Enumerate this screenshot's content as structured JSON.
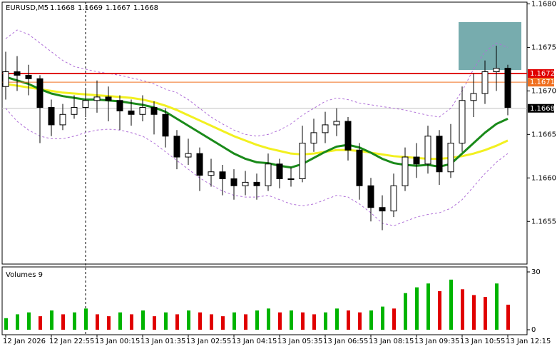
{
  "chart_data": {
    "type": "candlestick",
    "symbol": "EURUSD,M5",
    "header_ohlc": [
      1.1668,
      1.1669,
      1.1667,
      1.1668
    ],
    "categories": [
      "12 Jan 2026",
      null,
      null,
      null,
      "12 Jan 22:55",
      null,
      null,
      null,
      "13 Jan 00:15",
      null,
      null,
      null,
      "13 Jan 01:35",
      null,
      null,
      null,
      "13 Jan 02:55",
      null,
      null,
      null,
      "13 Jan 04:15",
      null,
      null,
      null,
      "13 Jan 05:35",
      null,
      null,
      null,
      "13 Jan 06:55",
      null,
      null,
      null,
      "13 Jan 08:15",
      null,
      null,
      null,
      "13 Jan 09:35",
      null,
      null,
      null,
      "13 Jan 10:55",
      null,
      null,
      null,
      "13 Jan 12:15"
    ],
    "ohlc": [
      [
        1.16705,
        1.16745,
        1.1669,
        1.16722
      ],
      [
        1.16722,
        1.1674,
        1.167,
        1.16718
      ],
      [
        1.16718,
        1.1673,
        1.16695,
        1.16714
      ],
      [
        1.16714,
        1.16718,
        1.1664,
        1.16681
      ],
      [
        1.16681,
        1.1669,
        1.16648,
        1.16661
      ],
      [
        1.16661,
        1.16685,
        1.16655,
        1.16673
      ],
      [
        1.16673,
        1.16695,
        1.16668,
        1.16681
      ],
      [
        1.16681,
        1.16702,
        1.1667,
        1.16689
      ],
      [
        1.16689,
        1.16712,
        1.16675,
        1.16693
      ],
      [
        1.16693,
        1.16705,
        1.16665,
        1.16689
      ],
      [
        1.16689,
        1.16695,
        1.16655,
        1.16677
      ],
      [
        1.16677,
        1.1669,
        1.1666,
        1.16673
      ],
      [
        1.16673,
        1.16695,
        1.16665,
        1.16681
      ],
      [
        1.16681,
        1.16688,
        1.1665,
        1.16673
      ],
      [
        1.16673,
        1.1668,
        1.16635,
        1.16648
      ],
      [
        1.16648,
        1.16655,
        1.1661,
        1.16624
      ],
      [
        1.16624,
        1.16645,
        1.16615,
        1.16628
      ],
      [
        1.16628,
        1.16635,
        1.16585,
        1.16603
      ],
      [
        1.16603,
        1.16622,
        1.1659,
        1.16607
      ],
      [
        1.16607,
        1.16615,
        1.1658,
        1.16599
      ],
      [
        1.16599,
        1.1661,
        1.16575,
        1.16591
      ],
      [
        1.16591,
        1.16608,
        1.1658,
        1.16595
      ],
      [
        1.16595,
        1.16605,
        1.16575,
        1.16591
      ],
      [
        1.16591,
        1.16628,
        1.16585,
        1.16616
      ],
      [
        1.16616,
        1.16622,
        1.16588,
        1.16599
      ],
      [
        1.16599,
        1.16612,
        1.1659,
        1.16599
      ],
      [
        1.16599,
        1.1666,
        1.16595,
        1.1664
      ],
      [
        1.1664,
        1.16668,
        1.1663,
        1.16652
      ],
      [
        1.16652,
        1.16676,
        1.1664,
        1.16661
      ],
      [
        1.16661,
        1.1668,
        1.16648,
        1.16665
      ],
      [
        1.16665,
        1.1667,
        1.1662,
        1.16632
      ],
      [
        1.16632,
        1.1664,
        1.16575,
        1.16591
      ],
      [
        1.16591,
        1.166,
        1.1655,
        1.16566
      ],
      [
        1.16566,
        1.1658,
        1.1654,
        1.16562
      ],
      [
        1.16562,
        1.16605,
        1.16555,
        1.16591
      ],
      [
        1.16591,
        1.16635,
        1.16585,
        1.16624
      ],
      [
        1.16624,
        1.1664,
        1.166,
        1.16616
      ],
      [
        1.16616,
        1.1666,
        1.16605,
        1.16648
      ],
      [
        1.16648,
        1.16655,
        1.16592,
        1.16607
      ],
      [
        1.16607,
        1.16662,
        1.166,
        1.1664
      ],
      [
        1.1664,
        1.16705,
        1.1663,
        1.16689
      ],
      [
        1.16689,
        1.1672,
        1.1667,
        1.16697
      ],
      [
        1.16697,
        1.16735,
        1.16685,
        1.16722
      ],
      [
        1.16722,
        1.16752,
        1.167,
        1.16726
      ],
      [
        1.16726,
        1.1673,
        1.16672,
        1.16681
      ]
    ],
    "lines": [
      {
        "color": "#b070d8",
        "style": "dashed",
        "values": [
          1.1676,
          1.1677,
          1.16765,
          1.16755,
          1.16745,
          1.16735,
          1.16728,
          1.16725,
          1.16722,
          1.1672,
          1.16718,
          1.16715,
          1.16712,
          1.16708,
          1.16702,
          1.16698,
          1.1669,
          1.1668,
          1.1667,
          1.16662,
          1.16655,
          1.1665,
          1.16648,
          1.1665,
          1.16655,
          1.16662,
          1.16672,
          1.1668,
          1.16688,
          1.16692,
          1.1669,
          1.16686,
          1.16684,
          1.16682,
          1.1668,
          1.16678,
          1.16675,
          1.16672,
          1.1667,
          1.1668,
          1.167,
          1.16725,
          1.16745,
          1.16755,
          1.1675
        ]
      },
      {
        "color": "#b070d8",
        "style": "dashed",
        "values": [
          1.1668,
          1.16665,
          1.16655,
          1.16648,
          1.16645,
          1.16645,
          1.16648,
          1.16652,
          1.16655,
          1.16656,
          1.16655,
          1.16652,
          1.16648,
          1.1664,
          1.1663,
          1.1662,
          1.1661,
          1.166,
          1.16592,
          1.16585,
          1.1658,
          1.16578,
          1.16578,
          1.1658,
          1.16575,
          1.1657,
          1.16568,
          1.1657,
          1.16575,
          1.1658,
          1.16578,
          1.1657,
          1.1656,
          1.16548,
          1.16545,
          1.1655,
          1.16555,
          1.16558,
          1.1656,
          1.16565,
          1.16575,
          1.1659,
          1.16605,
          1.16618,
          1.16628
        ]
      },
      {
        "color": "#f2f020",
        "style": "thick",
        "values": [
          1.16708,
          1.16706,
          1.16704,
          1.16702,
          1.167,
          1.16698,
          1.16697,
          1.16696,
          1.16695,
          1.16694,
          1.16693,
          1.16692,
          1.1669,
          1.16687,
          1.16683,
          1.16678,
          1.16672,
          1.16666,
          1.1666,
          1.16654,
          1.16648,
          1.16643,
          1.16638,
          1.16634,
          1.16631,
          1.16628,
          1.16627,
          1.16628,
          1.1663,
          1.16632,
          1.16632,
          1.16631,
          1.16629,
          1.16627,
          1.16625,
          1.16624,
          1.16623,
          1.16622,
          1.16622,
          1.16623,
          1.16625,
          1.16628,
          1.16632,
          1.16637,
          1.16643
        ]
      },
      {
        "color": "#1a8a1a",
        "style": "thick",
        "values": [
          1.16716,
          1.16712,
          1.16708,
          1.16702,
          1.16697,
          1.16694,
          1.16692,
          1.1669,
          1.1669,
          1.16689,
          1.16688,
          1.16686,
          1.16684,
          1.16681,
          1.16676,
          1.16668,
          1.1666,
          1.16652,
          1.16644,
          1.16636,
          1.16628,
          1.16622,
          1.16618,
          1.16617,
          1.16614,
          1.16612,
          1.16616,
          1.16623,
          1.1663,
          1.16636,
          1.16638,
          1.16635,
          1.16629,
          1.16622,
          1.16617,
          1.16615,
          1.16614,
          1.16615,
          1.16613,
          1.16616,
          1.16628,
          1.1664,
          1.16652,
          1.16662,
          1.16668
        ]
      }
    ],
    "levels": [
      {
        "price": 1.1672,
        "color": "#e00000"
      },
      {
        "price": 1.1671,
        "color": "#f07020"
      }
    ],
    "last_price": 1.1668,
    "ylim": [
      1.16501,
      1.16802
    ],
    "yticks": [
      {
        "value": 1.168,
        "label": "1.1680"
      },
      1.1675,
      {
        "value": 1.167,
        "label": "1.1670"
      },
      1.1665,
      {
        "value": 1.166,
        "label": "1.1660"
      },
      1.1655
    ],
    "volume_title": "Volumes 9",
    "volumes": [
      6,
      8,
      9,
      7,
      10,
      8,
      9,
      11,
      8,
      7,
      9,
      8,
      10,
      7,
      9,
      8,
      10,
      9,
      8,
      7,
      9,
      8,
      10,
      11,
      9,
      10,
      9,
      8,
      9,
      11,
      10,
      9,
      10,
      12,
      11,
      19,
      22,
      24,
      20,
      26,
      21,
      18,
      17,
      24,
      13
    ],
    "volume_colors": {
      "up": "#00b400",
      "down": "#e00000"
    },
    "volume_ylim": [
      0,
      30
    ],
    "volume_yticks": [
      0,
      30
    ]
  }
}
